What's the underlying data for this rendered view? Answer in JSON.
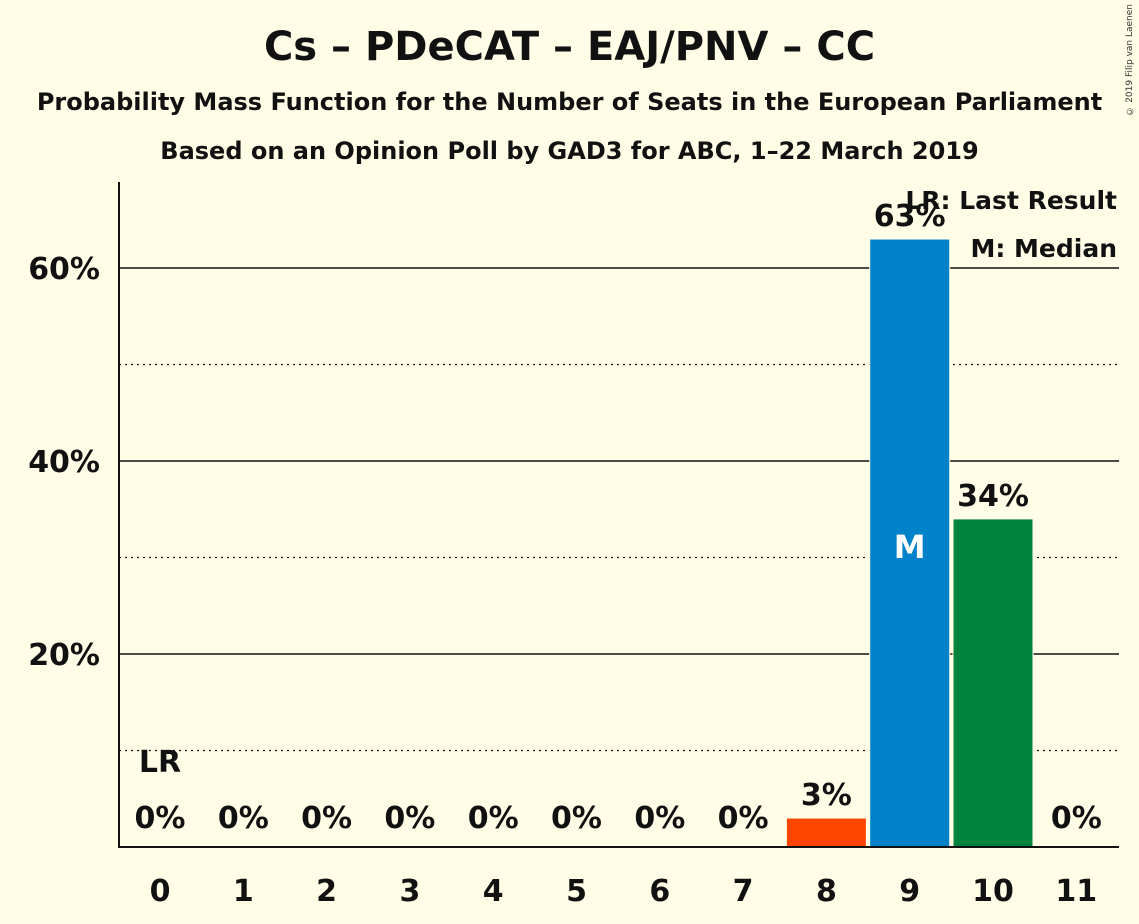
{
  "title": "Cs – PDeCAT – EAJ/PNV – CC",
  "subtitle1": "Probability Mass Function for the Number of Seats in the European Parliament",
  "subtitle2": "Based on an Opinion Poll by GAD3 for ABC, 1–22 March 2019",
  "copyright": "© 2019 Filip van Laenen",
  "legend": {
    "lr": "LR: Last Result",
    "median": "M: Median"
  },
  "chart_data": {
    "type": "bar",
    "categories": [
      "0",
      "1",
      "2",
      "3",
      "4",
      "5",
      "6",
      "7",
      "8",
      "9",
      "10",
      "11"
    ],
    "values": [
      0,
      0,
      0,
      0,
      0,
      0,
      0,
      0,
      3,
      63,
      34,
      0
    ],
    "data_labels": [
      "0%",
      "0%",
      "0%",
      "0%",
      "0%",
      "0%",
      "0%",
      "0%",
      "3%",
      "63%",
      "34%",
      "0%"
    ],
    "y_ticks": [
      20,
      40,
      60
    ],
    "y_tick_labels": [
      "20%",
      "40%",
      "60%"
    ],
    "ylim": [
      0,
      69
    ],
    "bar_colors": [
      "#E9E6CF",
      "#E9E6CF",
      "#E9E6CF",
      "#E9E6CF",
      "#E9E6CF",
      "#E9E6CF",
      "#E9E6CF",
      "#E9E6CF",
      "#FF4500",
      "#0082CA",
      "#00843D",
      "#E9E6CF"
    ],
    "last_result_seat": 0,
    "last_result_label": "LR",
    "median_seat": 9,
    "median_label": "M"
  }
}
